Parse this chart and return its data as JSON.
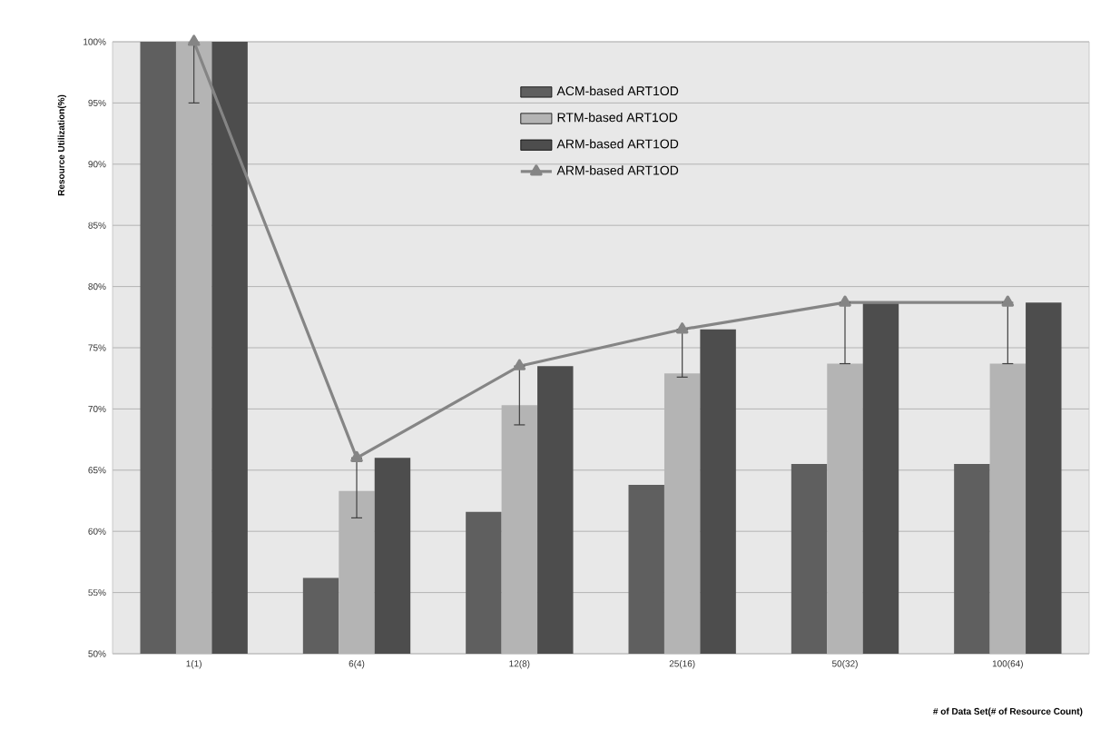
{
  "chart_data": {
    "type": "bar",
    "xlabel": "# of Data Set(# of Resource Count)",
    "ylabel": "Resource Utilization(%)",
    "categories": [
      "1(1)",
      "6(4)",
      "12(8)",
      "25(16)",
      "50(32)",
      "100(64)"
    ],
    "series": [
      {
        "name": "ACM-based ART1OD",
        "color": "#5f5f5f",
        "values": [
          100,
          56.2,
          61.6,
          63.8,
          65.5,
          65.5
        ]
      },
      {
        "name": "RTM-based ART1OD",
        "color": "#b4b4b4",
        "values": [
          100,
          63.3,
          70.3,
          72.9,
          73.7,
          73.7
        ]
      },
      {
        "name": "ARM-based ART1OD",
        "color": "#4d4d4d",
        "values": [
          100,
          66,
          73.5,
          76.5,
          78.7,
          78.7
        ]
      },
      {
        "name": "ARM-based ART1OD",
        "type": "line",
        "color": "#858585",
        "marker": "triangle",
        "values": [
          100,
          66,
          73.5,
          76.5,
          78.7,
          78.7
        ],
        "errors": [
          [
            95,
            100
          ],
          [
            61.1,
            66
          ],
          [
            68.7,
            73.5
          ],
          [
            72.6,
            76.5
          ],
          [
            73.7,
            78.7
          ],
          [
            73.7,
            78.7
          ]
        ]
      }
    ],
    "ylim": [
      50,
      100
    ],
    "yticks": [
      {
        "value": 50,
        "label": "50%"
      },
      {
        "value": 55,
        "label": "55%"
      },
      {
        "value": 60,
        "label": "60%"
      },
      {
        "value": 65,
        "label": "65%"
      },
      {
        "value": 70,
        "label": "70%"
      },
      {
        "value": 75,
        "label": "75%"
      },
      {
        "value": 80,
        "label": "80%"
      },
      {
        "value": 85,
        "label": "85%"
      },
      {
        "value": 90,
        "label": "90%"
      },
      {
        "value": 95,
        "label": "95%"
      },
      {
        "value": 100,
        "label": "100%"
      }
    ],
    "grid": "y",
    "legend": "top"
  }
}
